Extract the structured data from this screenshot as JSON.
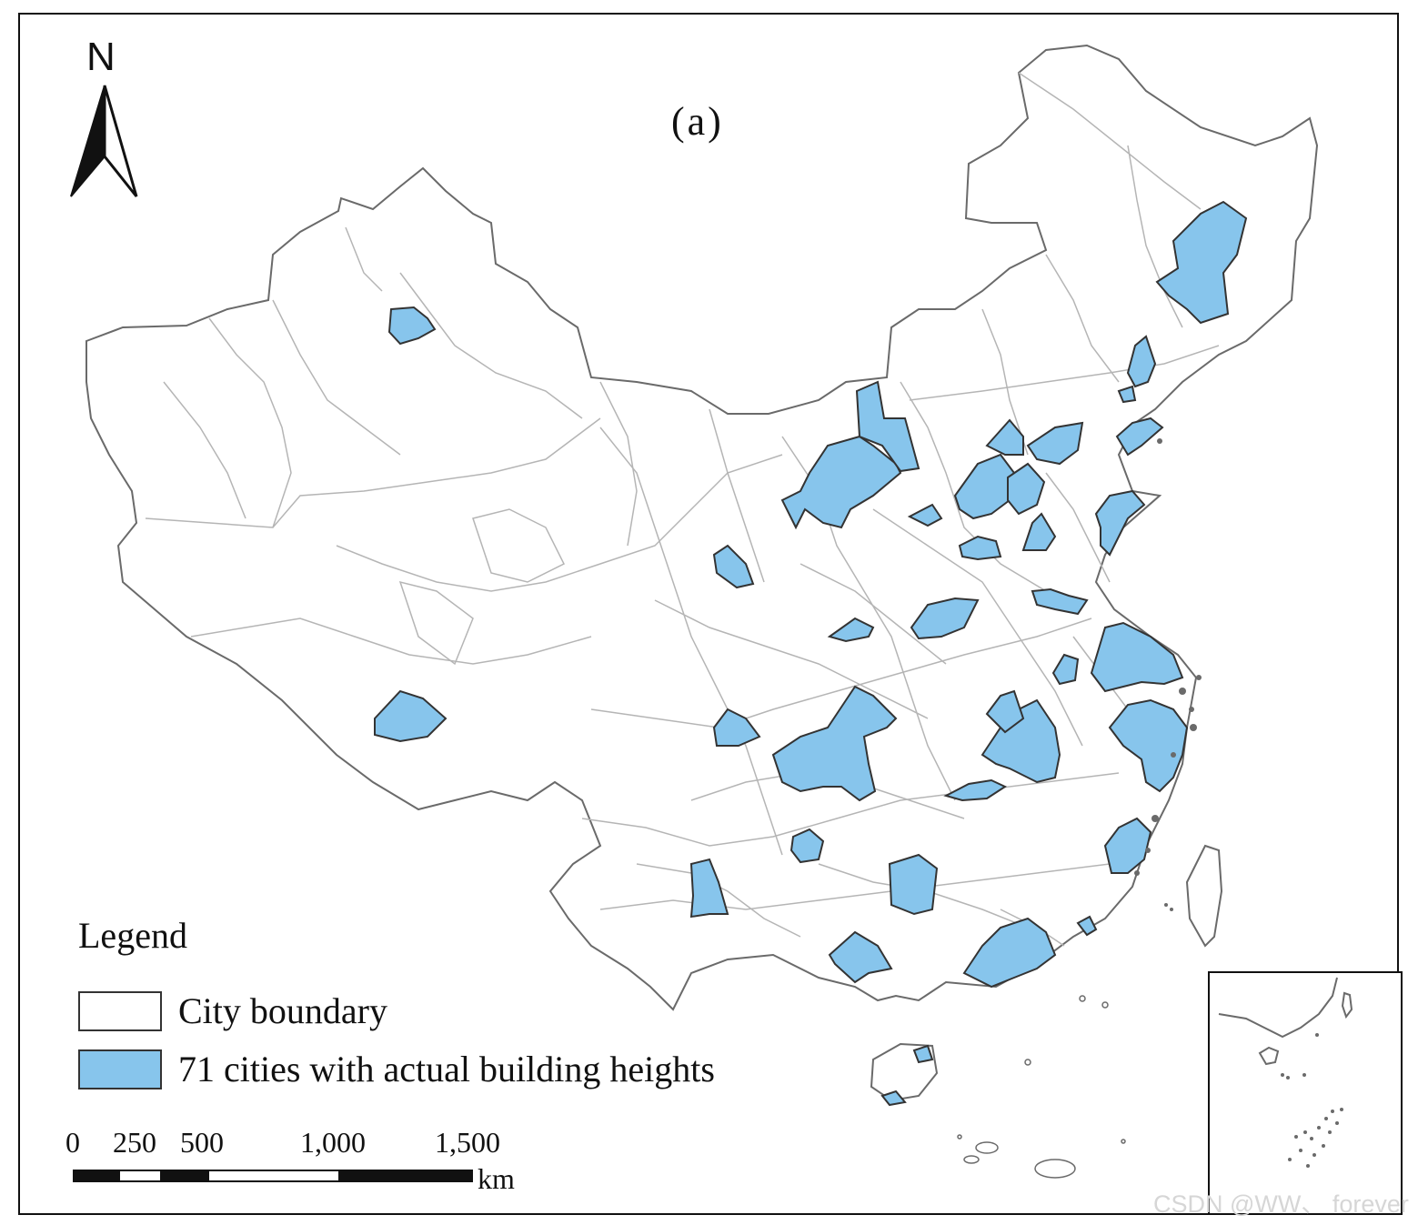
{
  "panel_label": "(a)",
  "north_arrow": {
    "letter": "N"
  },
  "legend": {
    "title": "Legend",
    "items": [
      {
        "label": "City boundary",
        "fill": "#ffffff"
      },
      {
        "label": "71 cities with actual building heights",
        "fill": "#87c5ec"
      }
    ]
  },
  "scale_bar": {
    "ticks": [
      "0",
      "250",
      "500",
      "1,000",
      "1,500"
    ],
    "unit": "km"
  },
  "colors": {
    "highlight": "#87c5ec",
    "boundary": "#b5b5b5",
    "outline": "#333333"
  },
  "watermark": "CSDN @WW、 forever"
}
